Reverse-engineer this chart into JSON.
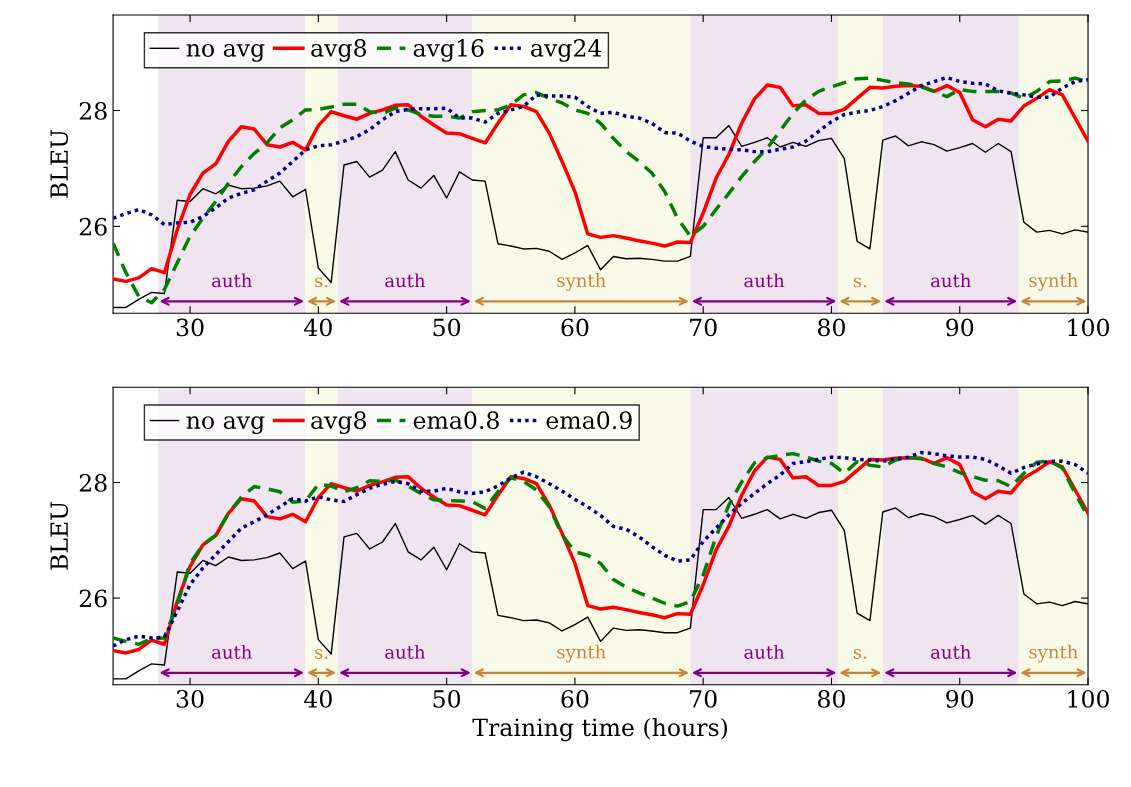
{
  "chart_data": [
    {
      "type": "line",
      "ylabel": "BLEU",
      "x": [
        24,
        25,
        26,
        27,
        28,
        29,
        30,
        31,
        32,
        33,
        34,
        35,
        36,
        37,
        38,
        39,
        40,
        41,
        42,
        43,
        44,
        45,
        46,
        47,
        48,
        49,
        50,
        51,
        52,
        53,
        54,
        55,
        56,
        57,
        58,
        59,
        60,
        61,
        62,
        63,
        64,
        65,
        66,
        67,
        68,
        69,
        70,
        71,
        72,
        73,
        74,
        75,
        76,
        77,
        78,
        79,
        80,
        81,
        82,
        83,
        84,
        85,
        86,
        87,
        88,
        89,
        90,
        91,
        92,
        93,
        94,
        95,
        96,
        97,
        98,
        99,
        100
      ],
      "xlim": [
        24,
        100
      ],
      "ylim": [
        24.5,
        29.65
      ],
      "xticks": [
        30,
        40,
        50,
        60,
        70,
        80,
        90,
        100
      ],
      "yticks": [
        26,
        28
      ],
      "grid": false,
      "legend": "top left",
      "marker": "none",
      "series": [
        {
          "name": "no avg",
          "color": "#000000",
          "line_style": "solid",
          "values": [
            24.6,
            24.6,
            24.74,
            24.86,
            24.84,
            26.45,
            26.43,
            26.65,
            26.56,
            26.71,
            26.65,
            26.66,
            26.7,
            26.78,
            26.51,
            26.64,
            25.28,
            25.03,
            27.06,
            27.12,
            26.85,
            26.97,
            27.29,
            26.8,
            26.66,
            26.88,
            26.49,
            26.94,
            26.8,
            26.78,
            25.7,
            25.66,
            25.61,
            25.62,
            25.57,
            25.43,
            25.54,
            25.67,
            25.25,
            25.48,
            25.44,
            25.45,
            25.43,
            25.4,
            25.4,
            25.48,
            27.53,
            27.53,
            27.74,
            27.38,
            27.45,
            27.53,
            27.37,
            27.45,
            27.38,
            27.48,
            27.52,
            27.17,
            25.74,
            25.61,
            27.49,
            27.56,
            27.39,
            27.46,
            27.41,
            27.3,
            27.36,
            27.43,
            27.28,
            27.43,
            27.29,
            26.07,
            25.9,
            25.93,
            25.87,
            25.94,
            25.9
          ]
        },
        {
          "name": "avg8",
          "color": "#ff0000",
          "line_style": "solid",
          "values": [
            25.09,
            25.05,
            25.11,
            25.27,
            25.2,
            25.94,
            26.55,
            26.92,
            27.08,
            27.47,
            27.72,
            27.68,
            27.41,
            27.37,
            27.45,
            27.32,
            27.74,
            27.98,
            27.91,
            27.85,
            27.95,
            28.01,
            28.09,
            28.1,
            27.9,
            27.75,
            27.61,
            27.6,
            27.52,
            27.44,
            27.78,
            28.1,
            28.07,
            27.98,
            27.61,
            27.12,
            26.6,
            25.87,
            25.81,
            25.84,
            25.8,
            25.75,
            25.71,
            25.66,
            25.73,
            25.72,
            26.23,
            26.83,
            27.24,
            27.78,
            28.2,
            28.44,
            28.4,
            28.08,
            28.1,
            27.95,
            27.95,
            28.02,
            28.21,
            28.4,
            28.39,
            28.42,
            28.43,
            28.42,
            28.33,
            28.43,
            28.31,
            27.84,
            27.72,
            27.85,
            27.82,
            28.08,
            28.21,
            28.36,
            28.27,
            27.87,
            27.47
          ]
        },
        {
          "name": "avg16",
          "color": "#008000",
          "line_style": "dashed",
          "values": [
            25.71,
            25.2,
            24.79,
            24.68,
            24.91,
            25.37,
            25.83,
            26.14,
            26.43,
            26.75,
            27.03,
            27.26,
            27.44,
            27.7,
            27.84,
            28.01,
            28.02,
            28.06,
            28.11,
            28.11,
            27.98,
            27.95,
            28.04,
            28.01,
            27.93,
            27.9,
            27.9,
            27.87,
            27.98,
            28.0,
            28.01,
            28.1,
            28.27,
            28.31,
            28.21,
            28.13,
            28.01,
            27.95,
            27.78,
            27.52,
            27.29,
            27.12,
            26.92,
            26.6,
            26.14,
            25.83,
            26.0,
            26.29,
            26.57,
            26.86,
            27.12,
            27.35,
            27.65,
            27.95,
            28.18,
            28.33,
            28.41,
            28.48,
            28.55,
            28.56,
            28.52,
            28.48,
            28.46,
            28.41,
            28.33,
            28.24,
            28.36,
            28.33,
            28.33,
            28.33,
            28.3,
            28.21,
            28.33,
            28.5,
            28.51,
            28.56,
            28.5
          ]
        },
        {
          "name": "avg24",
          "color": "#00008b",
          "line_style": "dotted",
          "values": [
            26.14,
            26.22,
            26.29,
            26.2,
            26.03,
            26.06,
            26.07,
            26.17,
            26.32,
            26.49,
            26.57,
            26.63,
            26.78,
            26.92,
            27.12,
            27.32,
            27.39,
            27.41,
            27.47,
            27.55,
            27.67,
            27.84,
            27.98,
            28.02,
            28.03,
            28.03,
            28.04,
            27.87,
            27.87,
            27.8,
            27.95,
            28.01,
            28.07,
            28.27,
            28.25,
            28.25,
            28.23,
            28.07,
            27.95,
            27.97,
            27.9,
            27.87,
            27.78,
            27.62,
            27.61,
            27.47,
            27.38,
            27.35,
            27.33,
            27.32,
            27.29,
            27.29,
            27.33,
            27.37,
            27.47,
            27.64,
            27.81,
            27.93,
            27.97,
            28.0,
            28.07,
            28.17,
            28.3,
            28.43,
            28.5,
            28.57,
            28.5,
            28.47,
            28.46,
            28.34,
            28.3,
            28.27,
            28.23,
            28.23,
            28.39,
            28.5,
            28.53
          ]
        }
      ],
      "bands": [
        {
          "axis": "x",
          "from": 27.5,
          "to": 39,
          "label": "auth",
          "color": "#f0e4f0"
        },
        {
          "axis": "x",
          "from": 39,
          "to": 41.5,
          "label": "s.",
          "color": "#fafae8"
        },
        {
          "axis": "x",
          "from": 41.5,
          "to": 52,
          "label": "auth",
          "color": "#f0e4f0"
        },
        {
          "axis": "x",
          "from": 52,
          "to": 69,
          "label": "synth",
          "color": "#fafae8"
        },
        {
          "axis": "x",
          "from": 69,
          "to": 80.5,
          "label": "auth",
          "color": "#f0e4f0"
        },
        {
          "axis": "x",
          "from": 80.5,
          "to": 84,
          "label": "s.",
          "color": "#fafae8"
        },
        {
          "axis": "x",
          "from": 84,
          "to": 94.6,
          "label": "auth",
          "color": "#f0e4f0"
        },
        {
          "axis": "x",
          "from": 94.6,
          "to": 100,
          "label": "synth",
          "color": "#fafae8"
        }
      ]
    },
    {
      "type": "line",
      "ylabel": "BLEU",
      "xlabel": "Training time (hours)",
      "x": [
        24,
        25,
        26,
        27,
        28,
        29,
        30,
        31,
        32,
        33,
        34,
        35,
        36,
        37,
        38,
        39,
        40,
        41,
        42,
        43,
        44,
        45,
        46,
        47,
        48,
        49,
        50,
        51,
        52,
        53,
        54,
        55,
        56,
        57,
        58,
        59,
        60,
        61,
        62,
        63,
        64,
        65,
        66,
        67,
        68,
        69,
        70,
        71,
        72,
        73,
        74,
        75,
        76,
        77,
        78,
        79,
        80,
        81,
        82,
        83,
        84,
        85,
        86,
        87,
        88,
        89,
        90,
        91,
        92,
        93,
        94,
        95,
        96,
        97,
        98,
        99,
        100
      ],
      "xlim": [
        24,
        100
      ],
      "ylim": [
        24.5,
        29.65
      ],
      "xticks": [
        30,
        40,
        50,
        60,
        70,
        80,
        90,
        100
      ],
      "yticks": [
        26,
        28
      ],
      "grid": false,
      "legend": "top left",
      "marker": "none",
      "series": [
        {
          "name": "no avg",
          "color": "#000000",
          "line_style": "solid",
          "values": [
            24.6,
            24.6,
            24.74,
            24.86,
            24.84,
            26.45,
            26.43,
            26.65,
            26.56,
            26.71,
            26.65,
            26.66,
            26.7,
            26.78,
            26.51,
            26.64,
            25.28,
            25.03,
            27.06,
            27.12,
            26.85,
            26.97,
            27.29,
            26.8,
            26.66,
            26.88,
            26.49,
            26.94,
            26.8,
            26.78,
            25.7,
            25.66,
            25.61,
            25.62,
            25.57,
            25.43,
            25.54,
            25.67,
            25.25,
            25.48,
            25.44,
            25.45,
            25.43,
            25.4,
            25.4,
            25.48,
            27.53,
            27.53,
            27.74,
            27.38,
            27.45,
            27.53,
            27.37,
            27.45,
            27.38,
            27.48,
            27.52,
            27.17,
            25.74,
            25.61,
            27.49,
            27.56,
            27.39,
            27.46,
            27.41,
            27.3,
            27.36,
            27.43,
            27.28,
            27.43,
            27.29,
            26.07,
            25.9,
            25.93,
            25.87,
            25.94,
            25.9
          ]
        },
        {
          "name": "avg8",
          "color": "#ff0000",
          "line_style": "solid",
          "values": [
            25.09,
            25.05,
            25.11,
            25.27,
            25.2,
            25.94,
            26.55,
            26.92,
            27.08,
            27.47,
            27.72,
            27.68,
            27.41,
            27.37,
            27.45,
            27.32,
            27.74,
            27.98,
            27.91,
            27.85,
            27.95,
            28.01,
            28.09,
            28.1,
            27.9,
            27.75,
            27.61,
            27.6,
            27.52,
            27.44,
            27.78,
            28.1,
            28.07,
            27.98,
            27.61,
            27.12,
            26.6,
            25.87,
            25.81,
            25.84,
            25.8,
            25.75,
            25.71,
            25.66,
            25.73,
            25.72,
            26.23,
            26.83,
            27.24,
            27.78,
            28.2,
            28.44,
            28.4,
            28.08,
            28.1,
            27.95,
            27.95,
            28.02,
            28.21,
            28.4,
            28.39,
            28.42,
            28.43,
            28.42,
            28.33,
            28.43,
            28.31,
            27.84,
            27.72,
            27.85,
            27.82,
            28.08,
            28.21,
            28.36,
            28.27,
            27.87,
            27.47
          ]
        },
        {
          "name": "ema0.8",
          "color": "#008000",
          "line_style": "dashed",
          "values": [
            25.31,
            25.25,
            25.2,
            25.3,
            25.31,
            25.89,
            26.6,
            26.92,
            27.09,
            27.47,
            27.75,
            27.93,
            27.89,
            27.84,
            27.66,
            27.68,
            27.97,
            27.94,
            27.84,
            27.91,
            28.03,
            28.02,
            28.04,
            27.94,
            27.81,
            27.7,
            27.69,
            27.68,
            27.67,
            27.55,
            27.84,
            28.08,
            28.02,
            27.87,
            27.58,
            27.09,
            26.8,
            26.74,
            26.6,
            26.32,
            26.19,
            26.09,
            26.0,
            25.91,
            25.86,
            25.94,
            26.4,
            27.06,
            27.61,
            28.01,
            28.34,
            28.43,
            28.47,
            28.5,
            28.44,
            28.37,
            28.33,
            28.16,
            28.36,
            28.3,
            28.27,
            28.39,
            28.43,
            28.41,
            28.33,
            28.27,
            28.17,
            28.1,
            28.04,
            28.03,
            27.93,
            28.16,
            28.35,
            28.37,
            28.25,
            27.81,
            27.41
          ]
        },
        {
          "name": "ema0.9",
          "color": "#00008b",
          "line_style": "dotted",
          "values": [
            25.17,
            25.28,
            25.34,
            25.31,
            25.32,
            25.77,
            26.23,
            26.52,
            26.75,
            26.98,
            27.21,
            27.32,
            27.44,
            27.58,
            27.72,
            27.68,
            27.75,
            27.7,
            27.67,
            27.79,
            27.9,
            27.97,
            28.02,
            27.98,
            27.85,
            27.85,
            27.9,
            27.84,
            27.81,
            27.84,
            27.94,
            28.08,
            28.18,
            28.1,
            27.98,
            27.85,
            27.71,
            27.58,
            27.43,
            27.24,
            27.19,
            27.06,
            26.89,
            26.74,
            26.64,
            26.66,
            26.98,
            27.21,
            27.44,
            27.64,
            27.81,
            27.98,
            28.13,
            28.33,
            28.36,
            28.4,
            28.44,
            28.43,
            28.4,
            28.39,
            28.37,
            28.41,
            28.44,
            28.52,
            28.5,
            28.46,
            28.44,
            28.44,
            28.4,
            28.29,
            28.16,
            28.26,
            28.32,
            28.37,
            28.37,
            28.31,
            28.16
          ]
        }
      ],
      "bands": [
        {
          "axis": "x",
          "from": 27.5,
          "to": 39,
          "label": "auth",
          "color": "#f0e4f0"
        },
        {
          "axis": "x",
          "from": 39,
          "to": 41.5,
          "label": "s.",
          "color": "#fafae8"
        },
        {
          "axis": "x",
          "from": 41.5,
          "to": 52,
          "label": "auth",
          "color": "#f0e4f0"
        },
        {
          "axis": "x",
          "from": 52,
          "to": 69,
          "label": "synth",
          "color": "#fafae8"
        },
        {
          "axis": "x",
          "from": 69,
          "to": 80.5,
          "label": "auth",
          "color": "#f0e4f0"
        },
        {
          "axis": "x",
          "from": 80.5,
          "to": 84,
          "label": "s.",
          "color": "#fafae8"
        },
        {
          "axis": "x",
          "from": 84,
          "to": 94.6,
          "label": "auth",
          "color": "#f0e4f0"
        },
        {
          "axis": "x",
          "from": 94.6,
          "to": 100,
          "label": "synth",
          "color": "#fafae8"
        }
      ]
    }
  ]
}
